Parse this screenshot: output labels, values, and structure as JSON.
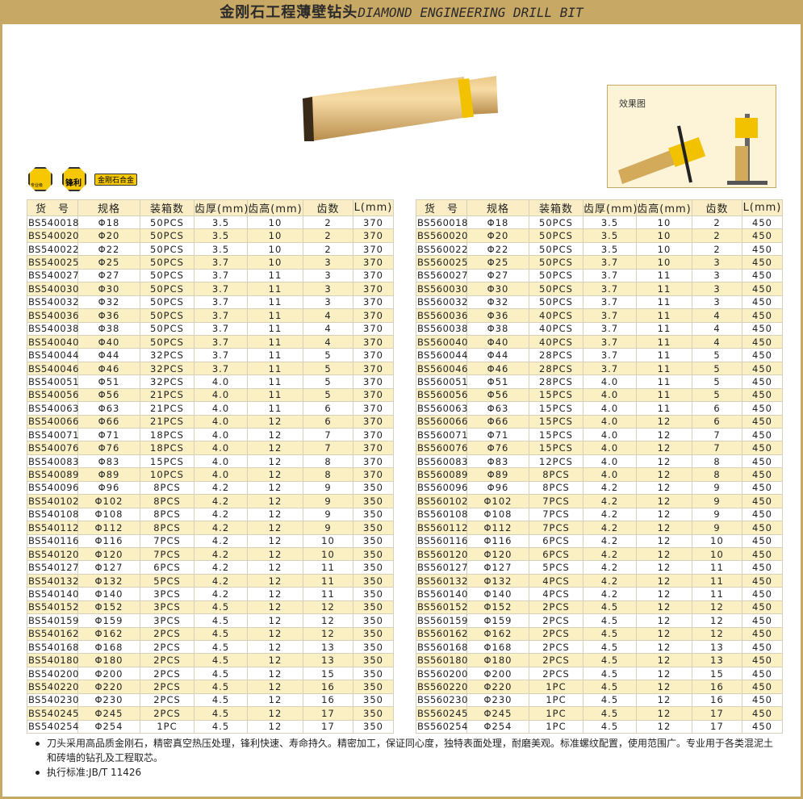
{
  "title": {
    "cn": "金刚石工程薄壁钻头",
    "en": "DIAMOND ENGINEERING DRILL BIT"
  },
  "effect_label": "效果图",
  "badges": {
    "pro": "专业级",
    "sharp": "锋利",
    "material": "金刚石合金"
  },
  "columns": [
    "货　号",
    "规格",
    "装箱数",
    "齿厚(mm)",
    "齿高(mm)",
    "齿数",
    "L(mm)"
  ],
  "table_left": [
    [
      "BS540018",
      "Φ18",
      "50PCS",
      "3.5",
      "10",
      "2",
      "370"
    ],
    [
      "BS540020",
      "Φ20",
      "50PCS",
      "3.5",
      "10",
      "2",
      "370"
    ],
    [
      "BS540022",
      "Φ22",
      "50PCS",
      "3.5",
      "10",
      "2",
      "370"
    ],
    [
      "BS540025",
      "Φ25",
      "50PCS",
      "3.7",
      "10",
      "3",
      "370"
    ],
    [
      "BS540027",
      "Φ27",
      "50PCS",
      "3.7",
      "11",
      "3",
      "370"
    ],
    [
      "BS540030",
      "Φ30",
      "50PCS",
      "3.7",
      "11",
      "3",
      "370"
    ],
    [
      "BS540032",
      "Φ32",
      "50PCS",
      "3.7",
      "11",
      "3",
      "370"
    ],
    [
      "BS540036",
      "Φ36",
      "50PCS",
      "3.7",
      "11",
      "4",
      "370"
    ],
    [
      "BS540038",
      "Φ38",
      "50PCS",
      "3.7",
      "11",
      "4",
      "370"
    ],
    [
      "BS540040",
      "Φ40",
      "50PCS",
      "3.7",
      "11",
      "4",
      "370"
    ],
    [
      "BS540044",
      "Φ44",
      "32PCS",
      "3.7",
      "11",
      "5",
      "370"
    ],
    [
      "BS540046",
      "Φ46",
      "32PCS",
      "3.7",
      "11",
      "5",
      "370"
    ],
    [
      "BS540051",
      "Φ51",
      "32PCS",
      "4.0",
      "11",
      "5",
      "370"
    ],
    [
      "BS540056",
      "Φ56",
      "21PCS",
      "4.0",
      "11",
      "5",
      "370"
    ],
    [
      "BS540063",
      "Φ63",
      "21PCS",
      "4.0",
      "11",
      "6",
      "370"
    ],
    [
      "BS540066",
      "Φ66",
      "21PCS",
      "4.0",
      "12",
      "6",
      "370"
    ],
    [
      "BS540071",
      "Φ71",
      "18PCS",
      "4.0",
      "12",
      "7",
      "370"
    ],
    [
      "BS540076",
      "Φ76",
      "18PCS",
      "4.0",
      "12",
      "7",
      "370"
    ],
    [
      "BS540083",
      "Φ83",
      "15PCS",
      "4.0",
      "12",
      "8",
      "370"
    ],
    [
      "BS540089",
      "Φ89",
      "10PCS",
      "4.0",
      "12",
      "8",
      "370"
    ],
    [
      "BS540096",
      "Φ96",
      "8PCS",
      "4.2",
      "12",
      "9",
      "350"
    ],
    [
      "BS540102",
      "Φ102",
      "8PCS",
      "4.2",
      "12",
      "9",
      "350"
    ],
    [
      "BS540108",
      "Φ108",
      "8PCS",
      "4.2",
      "12",
      "9",
      "350"
    ],
    [
      "BS540112",
      "Φ112",
      "8PCS",
      "4.2",
      "12",
      "9",
      "350"
    ],
    [
      "BS540116",
      "Φ116",
      "7PCS",
      "4.2",
      "12",
      "10",
      "350"
    ],
    [
      "BS540120",
      "Φ120",
      "7PCS",
      "4.2",
      "12",
      "10",
      "350"
    ],
    [
      "BS540127",
      "Φ127",
      "6PCS",
      "4.2",
      "12",
      "11",
      "350"
    ],
    [
      "BS540132",
      "Φ132",
      "5PCS",
      "4.2",
      "12",
      "11",
      "350"
    ],
    [
      "BS540140",
      "Φ140",
      "3PCS",
      "4.2",
      "12",
      "11",
      "350"
    ],
    [
      "BS540152",
      "Φ152",
      "3PCS",
      "4.5",
      "12",
      "12",
      "350"
    ],
    [
      "BS540159",
      "Φ159",
      "3PCS",
      "4.5",
      "12",
      "12",
      "350"
    ],
    [
      "BS540162",
      "Φ162",
      "2PCS",
      "4.5",
      "12",
      "12",
      "350"
    ],
    [
      "BS540168",
      "Φ168",
      "2PCS",
      "4.5",
      "12",
      "13",
      "350"
    ],
    [
      "BS540180",
      "Φ180",
      "2PCS",
      "4.5",
      "12",
      "13",
      "350"
    ],
    [
      "BS540200",
      "Φ200",
      "2PCS",
      "4.5",
      "12",
      "15",
      "350"
    ],
    [
      "BS540220",
      "Φ220",
      "2PCS",
      "4.5",
      "12",
      "16",
      "350"
    ],
    [
      "BS540230",
      "Φ230",
      "2PCS",
      "4.5",
      "12",
      "16",
      "350"
    ],
    [
      "BS540245",
      "Φ245",
      "2PCS",
      "4.5",
      "12",
      "17",
      "350"
    ],
    [
      "BS540254",
      "Φ254",
      "1PC",
      "4.5",
      "12",
      "17",
      "350"
    ]
  ],
  "table_right": [
    [
      "BS560018",
      "Φ18",
      "50PCS",
      "3.5",
      "10",
      "2",
      "450"
    ],
    [
      "BS560020",
      "Φ20",
      "50PCS",
      "3.5",
      "10",
      "2",
      "450"
    ],
    [
      "BS560022",
      "Φ22",
      "50PCS",
      "3.5",
      "10",
      "2",
      "450"
    ],
    [
      "BS560025",
      "Φ25",
      "50PCS",
      "3.7",
      "10",
      "3",
      "450"
    ],
    [
      "BS560027",
      "Φ27",
      "50PCS",
      "3.7",
      "11",
      "3",
      "450"
    ],
    [
      "BS560030",
      "Φ30",
      "50PCS",
      "3.7",
      "11",
      "3",
      "450"
    ],
    [
      "BS560032",
      "Φ32",
      "50PCS",
      "3.7",
      "11",
      "3",
      "450"
    ],
    [
      "BS560036",
      "Φ36",
      "40PCS",
      "3.7",
      "11",
      "4",
      "450"
    ],
    [
      "BS560038",
      "Φ38",
      "40PCS",
      "3.7",
      "11",
      "4",
      "450"
    ],
    [
      "BS560040",
      "Φ40",
      "40PCS",
      "3.7",
      "11",
      "4",
      "450"
    ],
    [
      "BS560044",
      "Φ44",
      "28PCS",
      "3.7",
      "11",
      "5",
      "450"
    ],
    [
      "BS560046",
      "Φ46",
      "28PCS",
      "3.7",
      "11",
      "5",
      "450"
    ],
    [
      "BS560051",
      "Φ51",
      "28PCS",
      "4.0",
      "11",
      "5",
      "450"
    ],
    [
      "BS560056",
      "Φ56",
      "15PCS",
      "4.0",
      "11",
      "5",
      "450"
    ],
    [
      "BS560063",
      "Φ63",
      "15PCS",
      "4.0",
      "11",
      "6",
      "450"
    ],
    [
      "BS560066",
      "Φ66",
      "15PCS",
      "4.0",
      "12",
      "6",
      "450"
    ],
    [
      "BS560071",
      "Φ71",
      "15PCS",
      "4.0",
      "12",
      "7",
      "450"
    ],
    [
      "BS560076",
      "Φ76",
      "15PCS",
      "4.0",
      "12",
      "7",
      "450"
    ],
    [
      "BS560083",
      "Φ83",
      "12PCS",
      "4.0",
      "12",
      "8",
      "450"
    ],
    [
      "BS560089",
      "Φ89",
      "8PCS",
      "4.0",
      "12",
      "8",
      "450"
    ],
    [
      "BS560096",
      "Φ96",
      "8PCS",
      "4.2",
      "12",
      "9",
      "450"
    ],
    [
      "BS560102",
      "Φ102",
      "7PCS",
      "4.2",
      "12",
      "9",
      "450"
    ],
    [
      "BS560108",
      "Φ108",
      "7PCS",
      "4.2",
      "12",
      "9",
      "450"
    ],
    [
      "BS560112",
      "Φ112",
      "7PCS",
      "4.2",
      "12",
      "9",
      "450"
    ],
    [
      "BS560116",
      "Φ116",
      "6PCS",
      "4.2",
      "12",
      "10",
      "450"
    ],
    [
      "BS560120",
      "Φ120",
      "6PCS",
      "4.2",
      "12",
      "10",
      "450"
    ],
    [
      "BS560127",
      "Φ127",
      "5PCS",
      "4.2",
      "12",
      "11",
      "450"
    ],
    [
      "BS560132",
      "Φ132",
      "4PCS",
      "4.2",
      "12",
      "11",
      "450"
    ],
    [
      "BS560140",
      "Φ140",
      "4PCS",
      "4.2",
      "12",
      "11",
      "450"
    ],
    [
      "BS560152",
      "Φ152",
      "2PCS",
      "4.5",
      "12",
      "12",
      "450"
    ],
    [
      "BS560159",
      "Φ159",
      "2PCS",
      "4.5",
      "12",
      "12",
      "450"
    ],
    [
      "BS560162",
      "Φ162",
      "2PCS",
      "4.5",
      "12",
      "12",
      "450"
    ],
    [
      "BS560168",
      "Φ168",
      "2PCS",
      "4.5",
      "12",
      "13",
      "450"
    ],
    [
      "BS560180",
      "Φ180",
      "2PCS",
      "4.5",
      "12",
      "13",
      "450"
    ],
    [
      "BS560200",
      "Φ200",
      "2PCS",
      "4.5",
      "12",
      "15",
      "450"
    ],
    [
      "BS560220",
      "Φ220",
      "1PC",
      "4.5",
      "12",
      "16",
      "450"
    ],
    [
      "BS560230",
      "Φ230",
      "1PC",
      "4.5",
      "12",
      "16",
      "450"
    ],
    [
      "BS560245",
      "Φ245",
      "1PC",
      "4.5",
      "12",
      "17",
      "450"
    ],
    [
      "BS560254",
      "Φ254",
      "1PC",
      "4.5",
      "12",
      "17",
      "450"
    ]
  ],
  "notes": [
    "刀头采用高品质金刚石，精密真空热压处理，锋利快速、寿命持久。精密加工，保证同心度，独特表面处理，耐磨美观。标准螺纹配置，使用范围广。专业用于各类混泥土和砖墙的钻孔及工程取芯。",
    "执行标准:JB/T 11426"
  ],
  "colors": {
    "header_bar": "#c8a865",
    "row_alt": "#fbf0c4",
    "badge": "#f6c800"
  }
}
